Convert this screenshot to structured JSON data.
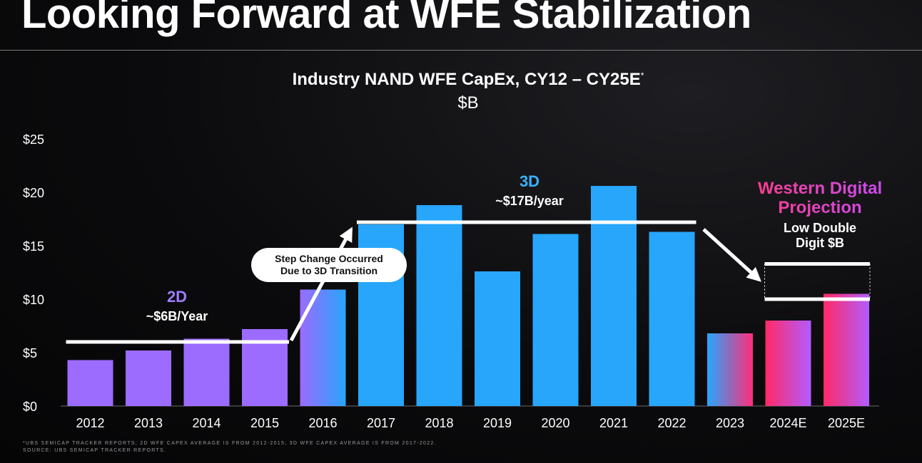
{
  "page": {
    "title": "Looking Forward at WFE Stabilization",
    "footnote_line1": "*UBS SEMICAP TRACKER REPORTS; 2D WFE CAPEX AVERAGE IS FROM 2012-2015; 3D WFE CAPEX AVERAGE IS FROM 2017-2022.",
    "footnote_line2": "SOURCE: UBS SEMICAP TRACKER REPORTS."
  },
  "annotations": {
    "callout_line1": "Step Change Occurred",
    "callout_line2": "Due to 3D Transition",
    "era_2d_label": "2D",
    "era_2d_value": "~$6B/Year",
    "era_3d_label": "3D",
    "era_3d_value": "~$17B/year",
    "projection_line1": "Western Digital",
    "projection_line2": "Projection",
    "projection_note_line1": "Low Double",
    "projection_note_line2": "Digit $B"
  },
  "colors": {
    "purple": "#9c6bff",
    "blue": "#27a6fb",
    "pink": "#ff2d6f",
    "white": "#ffffff"
  },
  "chart_data": {
    "type": "bar",
    "title": "Industry NAND WFE CapEx, CY12 – CY25E",
    "title_marker": "*",
    "subtitle": "$B",
    "categories": [
      "2012",
      "2013",
      "2014",
      "2015",
      "2016",
      "2017",
      "2018",
      "2019",
      "2020",
      "2021",
      "2022",
      "2023",
      "2024E",
      "2025E"
    ],
    "values": [
      4.3,
      5.2,
      6.3,
      7.2,
      10.9,
      17.0,
      18.8,
      12.6,
      16.1,
      20.6,
      16.3,
      6.8,
      8.0,
      10.5
    ],
    "styles": [
      "purple",
      "purple",
      "purple",
      "purple",
      "purple-blue",
      "blue",
      "blue",
      "blue",
      "blue",
      "blue",
      "blue",
      "blue-pink",
      "pink-purple",
      "pink-purple"
    ],
    "ylim": [
      0,
      25
    ],
    "yticks": [
      0,
      5,
      10,
      15,
      20,
      25
    ],
    "ytick_labels": [
      "$0",
      "$5",
      "$10",
      "$15",
      "$20",
      "$25"
    ],
    "xlabel": "",
    "ylabel": "",
    "average_lines": [
      {
        "name": "2D average",
        "from": "2012",
        "to": "2015",
        "value": 6
      },
      {
        "name": "3D average",
        "from": "2017",
        "to": "2022",
        "value": 17.2
      }
    ],
    "projection_range": {
      "from": "2024E",
      "to": "2025E",
      "low": 10,
      "high": 13.3
    }
  }
}
